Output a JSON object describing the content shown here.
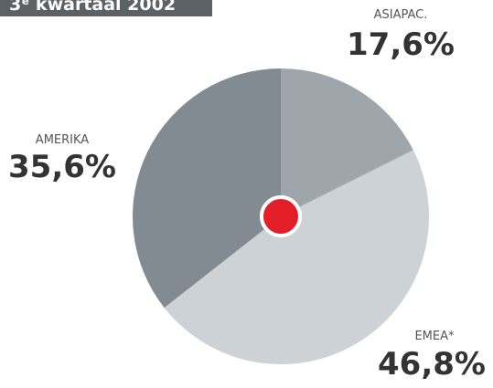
{
  "chart_data": {
    "type": "pie",
    "title": "3ᵉ kwartaal 2002",
    "categories": [
      "ASIAPAC.",
      "EMEA*",
      "AMERIKA"
    ],
    "values": [
      17.6,
      46.8,
      35.6
    ],
    "value_labels": [
      "17,6%",
      "46,8%",
      "35,6%"
    ],
    "colors": [
      "#9ea6ab",
      "#cdd2d6",
      "#828b91"
    ]
  }
}
